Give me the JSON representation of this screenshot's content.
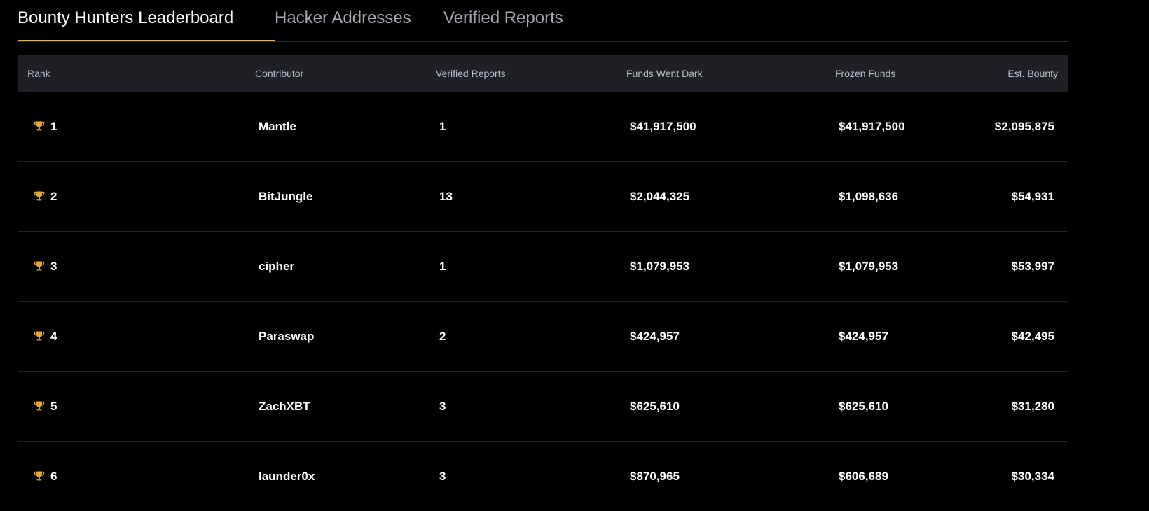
{
  "tabs": [
    {
      "label": "Bounty Hunters Leaderboard",
      "active": true
    },
    {
      "label": "Hacker Addresses",
      "active": false
    },
    {
      "label": "Verified Reports",
      "active": false
    }
  ],
  "columns": {
    "rank": "Rank",
    "contributor": "Contributor",
    "verified_reports": "Verified Reports",
    "funds_went_dark": "Funds Went Dark",
    "frozen_funds": "Frozen Funds",
    "est_bounty": "Est. Bounty"
  },
  "rows": [
    {
      "rank": "1",
      "contributor": "Mantle",
      "reports": "1",
      "dark": "$41,917,500",
      "frozen": "$41,917,500",
      "bounty": "$2,095,875"
    },
    {
      "rank": "2",
      "contributor": "BitJungle",
      "reports": "13",
      "dark": "$2,044,325",
      "frozen": "$1,098,636",
      "bounty": "$54,931"
    },
    {
      "rank": "3",
      "contributor": "cipher",
      "reports": "1",
      "dark": "$1,079,953",
      "frozen": "$1,079,953",
      "bounty": "$53,997"
    },
    {
      "rank": "4",
      "contributor": "Paraswap",
      "reports": "2",
      "dark": "$424,957",
      "frozen": "$424,957",
      "bounty": "$42,495"
    },
    {
      "rank": "5",
      "contributor": "ZachXBT",
      "reports": "3",
      "dark": "$625,610",
      "frozen": "$625,610",
      "bounty": "$31,280"
    },
    {
      "rank": "6",
      "contributor": "launder0x",
      "reports": "3",
      "dark": "$870,965",
      "frozen": "$606,689",
      "bounty": "$30,334"
    }
  ],
  "icons": {
    "rank": "trophy-icon"
  },
  "colors": {
    "accent": "#f0b90b",
    "background": "#000000",
    "header_bg": "#1e2026",
    "trophy": "#e8a735"
  }
}
